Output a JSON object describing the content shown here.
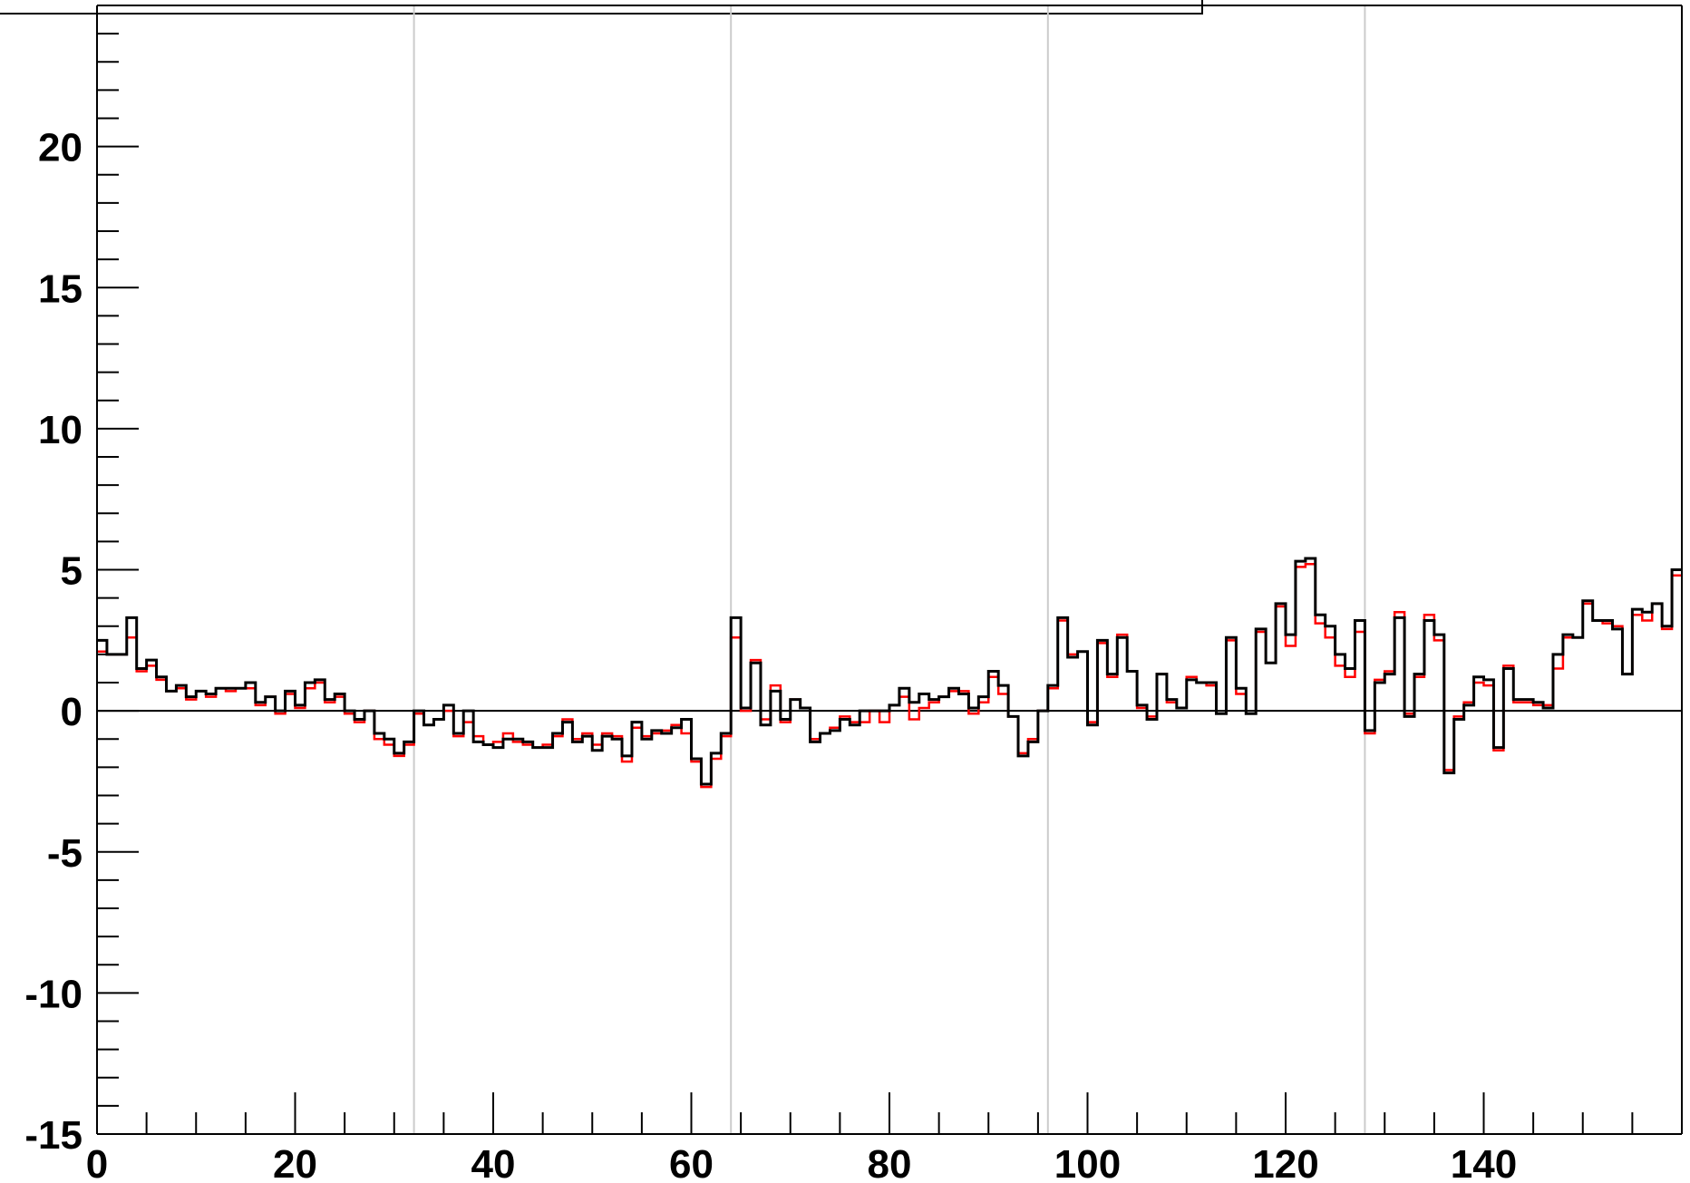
{
  "chart_data": {
    "type": "line",
    "title": "",
    "xlabel": "",
    "ylabel": "",
    "xlim": [
      0,
      160
    ],
    "ylim": [
      -15,
      25
    ],
    "x_ticks": [
      0,
      20,
      40,
      60,
      80,
      100,
      120,
      140
    ],
    "y_ticks": [
      -15,
      -10,
      -5,
      0,
      5,
      10,
      15,
      20
    ],
    "x_tick_labels": [
      "0",
      "20",
      "40",
      "60",
      "80",
      "100",
      "120",
      "140"
    ],
    "y_tick_labels": [
      "-15",
      "-10",
      "-5",
      "0",
      "5",
      "10",
      "15",
      "20"
    ],
    "grid_x": [
      32,
      64,
      96,
      128
    ],
    "grid": true,
    "zero_line": true,
    "histogram_bin_width": 1,
    "series": [
      {
        "color": "#ff0000",
        "values": [
          2.1,
          2.0,
          2.0,
          2.6,
          1.4,
          1.6,
          1.1,
          0.7,
          0.8,
          0.4,
          0.7,
          0.5,
          0.8,
          0.7,
          0.8,
          0.8,
          0.2,
          0.5,
          -0.1,
          0.6,
          0.1,
          0.8,
          1.0,
          0.3,
          0.5,
          -0.1,
          -0.4,
          0.0,
          -1.0,
          -1.2,
          -1.6,
          -1.2,
          -0.1,
          -0.5,
          -0.3,
          0.0,
          -0.9,
          -0.4,
          -0.9,
          -1.2,
          -1.1,
          -0.8,
          -1.1,
          -1.2,
          -1.3,
          -1.2,
          -0.9,
          -0.3,
          -1.0,
          -0.8,
          -1.2,
          -0.8,
          -0.9,
          -1.8,
          -0.6,
          -0.9,
          -0.8,
          -0.7,
          -0.5,
          -0.8,
          -1.8,
          -2.7,
          -1.7,
          -0.9,
          2.6,
          0.0,
          1.8,
          -0.3,
          0.9,
          -0.4,
          0.4,
          0.1,
          -1.0,
          -0.8,
          -0.6,
          -0.2,
          -0.4,
          -0.4,
          0.0,
          -0.4,
          0.2,
          0.5,
          -0.3,
          0.1,
          0.3,
          0.5,
          0.7,
          0.7,
          -0.1,
          0.3,
          1.2,
          0.6,
          -0.2,
          -1.5,
          -1.0,
          0.0,
          0.8,
          3.2,
          2.0,
          2.1,
          -0.4,
          2.4,
          1.2,
          2.7,
          1.4,
          0.1,
          -0.2,
          1.3,
          0.3,
          0.1,
          1.2,
          1.0,
          0.9,
          -0.1,
          2.5,
          0.6,
          -0.1,
          2.8,
          1.7,
          3.7,
          2.3,
          5.1,
          5.2,
          3.1,
          2.6,
          1.6,
          1.2,
          2.8,
          -0.8,
          1.1,
          1.4,
          3.5,
          -0.1,
          1.2,
          3.4,
          2.5,
          -2.1,
          -0.2,
          0.3,
          1.0,
          0.9,
          -1.4,
          1.6,
          0.3,
          0.3,
          0.2,
          0.2,
          1.5,
          2.6,
          2.6,
          3.8,
          3.2,
          3.1,
          3.0,
          1.3,
          3.4,
          3.2,
          3.8,
          2.9,
          4.8
        ]
      },
      {
        "color": "#000000",
        "values": [
          2.5,
          2.0,
          2.0,
          3.3,
          1.5,
          1.8,
          1.2,
          0.7,
          0.9,
          0.5,
          0.7,
          0.6,
          0.8,
          0.8,
          0.8,
          1.0,
          0.3,
          0.5,
          0.0,
          0.7,
          0.2,
          1.0,
          1.1,
          0.4,
          0.6,
          0.0,
          -0.3,
          0.0,
          -0.8,
          -1.0,
          -1.5,
          -1.1,
          0.0,
          -0.5,
          -0.3,
          0.2,
          -0.8,
          0.0,
          -1.1,
          -1.2,
          -1.3,
          -1.0,
          -1.0,
          -1.1,
          -1.3,
          -1.3,
          -0.8,
          -0.4,
          -1.1,
          -0.9,
          -1.4,
          -0.9,
          -1.0,
          -1.6,
          -0.4,
          -1.0,
          -0.7,
          -0.8,
          -0.6,
          -0.3,
          -1.7,
          -2.6,
          -1.5,
          -0.8,
          3.3,
          0.1,
          1.7,
          -0.5,
          0.7,
          -0.3,
          0.4,
          0.1,
          -1.1,
          -0.8,
          -0.7,
          -0.3,
          -0.5,
          0.0,
          0.0,
          0.0,
          0.2,
          0.8,
          0.3,
          0.6,
          0.4,
          0.5,
          0.8,
          0.6,
          0.1,
          0.5,
          1.4,
          0.9,
          -0.2,
          -1.6,
          -1.1,
          0.0,
          0.9,
          3.3,
          1.9,
          2.1,
          -0.5,
          2.5,
          1.3,
          2.6,
          1.4,
          0.2,
          -0.3,
          1.3,
          0.4,
          0.1,
          1.1,
          1.0,
          1.0,
          -0.1,
          2.6,
          0.8,
          -0.1,
          2.9,
          1.7,
          3.8,
          2.7,
          5.3,
          5.4,
          3.4,
          3.0,
          2.0,
          1.5,
          3.2,
          -0.7,
          1.0,
          1.3,
          3.3,
          -0.2,
          1.3,
          3.2,
          2.7,
          -2.2,
          -0.3,
          0.2,
          1.2,
          1.1,
          -1.3,
          1.5,
          0.4,
          0.4,
          0.3,
          0.1,
          2.0,
          2.7,
          2.6,
          3.9,
          3.2,
          3.2,
          2.9,
          1.3,
          3.6,
          3.5,
          3.8,
          3.0,
          5.0
        ]
      }
    ]
  }
}
